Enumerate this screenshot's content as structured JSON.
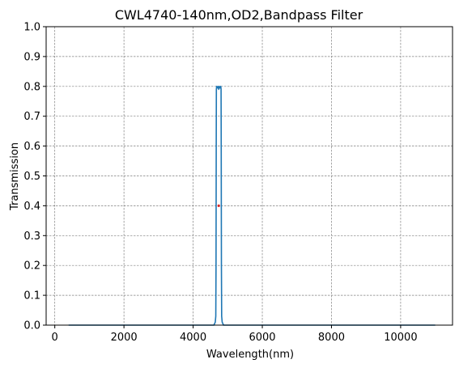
{
  "chart_data": {
    "type": "line",
    "title": "CWL4740-140nm,OD2,Bandpass Filter",
    "xlabel": "Wavelength(nm)",
    "ylabel": "Transmission",
    "xlim": [
      -250,
      11500
    ],
    "ylim": [
      0,
      1.0
    ],
    "x_ticks": [
      0,
      2000,
      4000,
      6000,
      8000,
      10000
    ],
    "y_ticks": [
      0.0,
      0.1,
      0.2,
      0.3,
      0.4,
      0.5,
      0.6,
      0.7,
      0.8,
      0.9,
      1.0
    ],
    "x_tick_labels": [
      "0",
      "2000",
      "4000",
      "6000",
      "8000",
      "10000"
    ],
    "y_tick_labels": [
      "0.0",
      "0.1",
      "0.2",
      "0.3",
      "0.4",
      "0.5",
      "0.6",
      "0.7",
      "0.8",
      "0.9",
      "1.0"
    ],
    "grid": true,
    "grid_style": "dashed",
    "series": [
      {
        "color": "#1f77b4",
        "x": [
          400,
          4600,
          4640,
          4655,
          4662,
          4668,
          4672,
          4680,
          4700,
          4720,
          4740,
          4760,
          4780,
          4800,
          4808,
          4812,
          4818,
          4825,
          4840,
          4880,
          11000
        ],
        "y": [
          0.0,
          0.0,
          0.01,
          0.03,
          0.2,
          0.6,
          0.79,
          0.8,
          0.795,
          0.8,
          0.79,
          0.8,
          0.795,
          0.8,
          0.79,
          0.6,
          0.2,
          0.03,
          0.01,
          0.0,
          0.0
        ]
      }
    ],
    "markers": [
      {
        "x": 4740,
        "y": 0.4,
        "color": "#d62728"
      }
    ]
  }
}
